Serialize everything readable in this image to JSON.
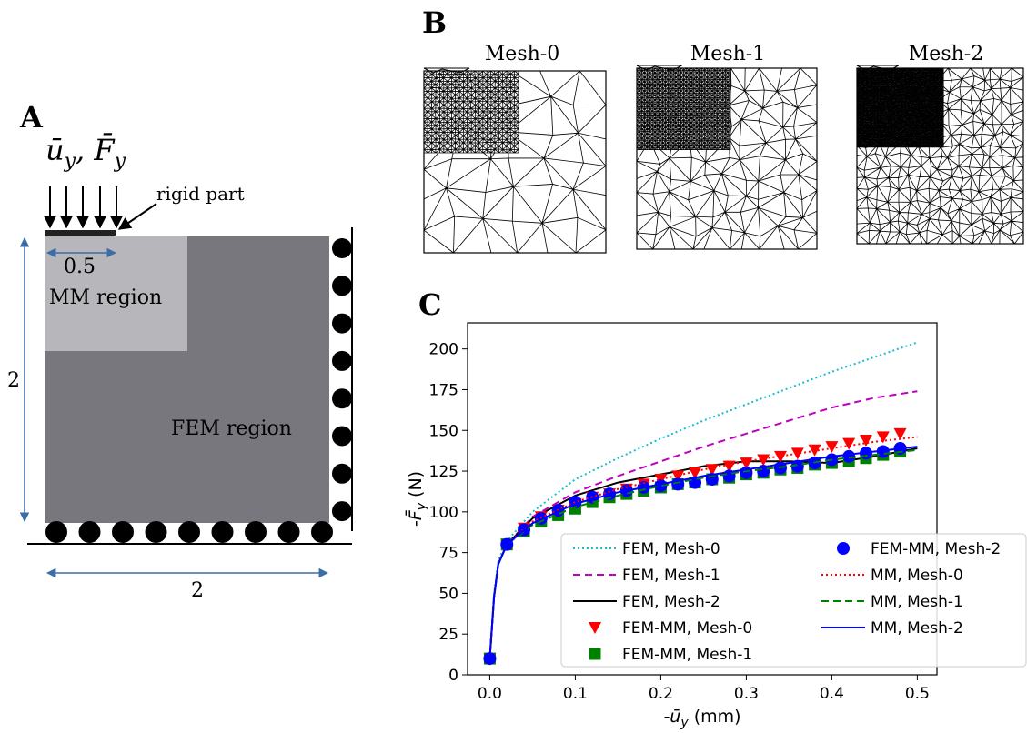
{
  "panel_a": {
    "label": "A",
    "load_label": [
      "ū",
      "y",
      ", ",
      "F̄",
      "y"
    ],
    "rigid_label": "rigid part",
    "width_half": "0.5",
    "mm_region": "MM region",
    "fem_region": "FEM region",
    "height": "2",
    "width": "2"
  },
  "panel_b": {
    "label": "B",
    "meshes": [
      "Mesh-0",
      "Mesh-1",
      "Mesh-2"
    ]
  },
  "panel_c_label": "C",
  "chart_data": {
    "type": "line",
    "x_label": [
      "-ū",
      "y",
      " (mm)"
    ],
    "y_label": [
      "-F̄",
      "y",
      " (N)"
    ],
    "xlim": [
      -0.026,
      0.523
    ],
    "ylim": [
      0,
      216
    ],
    "xticks": [
      {
        "value": 0,
        "label": "0.0"
      },
      0.1,
      0.2,
      0.3,
      0.4,
      0.5
    ],
    "yticks": [
      0,
      25,
      50,
      75,
      100,
      125,
      150,
      175,
      200
    ],
    "grid": false,
    "legend": "lower right",
    "series": [
      {
        "name": "FEM, Mesh-0",
        "color": "#17becf",
        "line_style": "dotted",
        "x": [
          0,
          0.005,
          0.01,
          0.02,
          0.05,
          0.1,
          0.15,
          0.2,
          0.25,
          0.3,
          0.35,
          0.4,
          0.45,
          0.5
        ],
        "values": [
          10,
          50,
          70,
          82,
          100,
          120,
          133,
          145,
          156,
          166,
          176,
          186,
          195,
          204
        ]
      },
      {
        "name": "FEM, Mesh-1",
        "color": "#bf00bf",
        "line_style": "dashed",
        "x": [
          0,
          0.005,
          0.01,
          0.02,
          0.05,
          0.1,
          0.15,
          0.2,
          0.25,
          0.3,
          0.35,
          0.4,
          0.45,
          0.5
        ],
        "values": [
          10,
          48,
          68,
          80,
          97,
          112,
          122,
          131,
          140,
          148,
          156,
          164,
          170,
          174
        ]
      },
      {
        "name": "FEM, Mesh-2",
        "color": "#000000",
        "line_style": "solid",
        "x": [
          0,
          0.005,
          0.01,
          0.02,
          0.05,
          0.1,
          0.15,
          0.2,
          0.25,
          0.3,
          0.35,
          0.4,
          0.45,
          0.5
        ],
        "values": [
          10,
          48,
          68,
          80,
          96,
          110,
          118,
          123,
          128,
          131,
          131,
          130,
          134,
          139
        ]
      },
      {
        "name": "FEM-MM, Mesh-0",
        "color": "#ff0000",
        "marker": "triangle-down",
        "x": [
          0,
          0.02,
          0.04,
          0.06,
          0.08,
          0.1,
          0.12,
          0.14,
          0.16,
          0.18,
          0.2,
          0.22,
          0.24,
          0.26,
          0.28,
          0.3,
          0.32,
          0.34,
          0.36,
          0.38,
          0.4,
          0.42,
          0.44,
          0.46,
          0.48
        ],
        "values": [
          10,
          80,
          90,
          97,
          101,
          105,
          109,
          111,
          114,
          117,
          120,
          122,
          124,
          126,
          128,
          130,
          132,
          134,
          136,
          138,
          140,
          142,
          144,
          146,
          148
        ]
      },
      {
        "name": "FEM-MM, Mesh-1",
        "color": "#008000",
        "marker": "square",
        "x": [
          0,
          0.02,
          0.04,
          0.06,
          0.08,
          0.1,
          0.12,
          0.14,
          0.16,
          0.18,
          0.2,
          0.22,
          0.24,
          0.26,
          0.28,
          0.3,
          0.32,
          0.34,
          0.36,
          0.38,
          0.4,
          0.42,
          0.44,
          0.46,
          0.48
        ],
        "values": [
          10,
          80,
          88,
          94,
          98,
          102,
          106,
          109,
          111,
          113,
          115,
          117,
          118,
          120,
          121,
          123,
          124,
          126,
          127,
          129,
          130,
          131,
          133,
          135,
          137
        ]
      },
      {
        "name": "FEM-MM, Mesh-2",
        "color": "#0000ff",
        "marker": "circle",
        "x": [
          0,
          0.02,
          0.04,
          0.06,
          0.08,
          0.1,
          0.12,
          0.14,
          0.16,
          0.18,
          0.2,
          0.22,
          0.24,
          0.26,
          0.28,
          0.3,
          0.32,
          0.34,
          0.36,
          0.38,
          0.4,
          0.42,
          0.44,
          0.46,
          0.48
        ],
        "values": [
          10,
          80,
          89,
          96,
          101,
          106,
          109,
          111,
          113,
          115,
          116,
          117,
          118,
          120,
          122,
          124,
          125,
          127,
          128,
          130,
          132,
          134,
          136,
          137,
          139
        ]
      },
      {
        "name": "MM, Mesh-0",
        "color": "#ff0000",
        "line_style": "dotted",
        "x": [
          0,
          0.005,
          0.01,
          0.02,
          0.05,
          0.1,
          0.15,
          0.2,
          0.25,
          0.3,
          0.35,
          0.4,
          0.45,
          0.5
        ],
        "values": [
          10,
          48,
          68,
          80,
          94,
          106,
          114,
          120,
          126,
          131,
          135,
          139,
          143,
          146
        ]
      },
      {
        "name": "MM, Mesh-1",
        "color": "#008000",
        "line_style": "dashed",
        "x": [
          0,
          0.005,
          0.01,
          0.02,
          0.05,
          0.1,
          0.15,
          0.2,
          0.25,
          0.3,
          0.35,
          0.4,
          0.45,
          0.5
        ],
        "values": [
          10,
          48,
          68,
          80,
          92,
          103,
          110,
          116,
          121,
          125,
          128,
          132,
          135,
          138
        ]
      },
      {
        "name": "MM, Mesh-2",
        "color": "#0000ff",
        "line_style": "solid",
        "x": [
          0,
          0.005,
          0.01,
          0.02,
          0.05,
          0.1,
          0.15,
          0.2,
          0.25,
          0.3,
          0.35,
          0.4,
          0.45,
          0.5
        ],
        "values": [
          10,
          48,
          68,
          80,
          93,
          105,
          112,
          117,
          122,
          126,
          130,
          134,
          137,
          140
        ]
      }
    ]
  }
}
